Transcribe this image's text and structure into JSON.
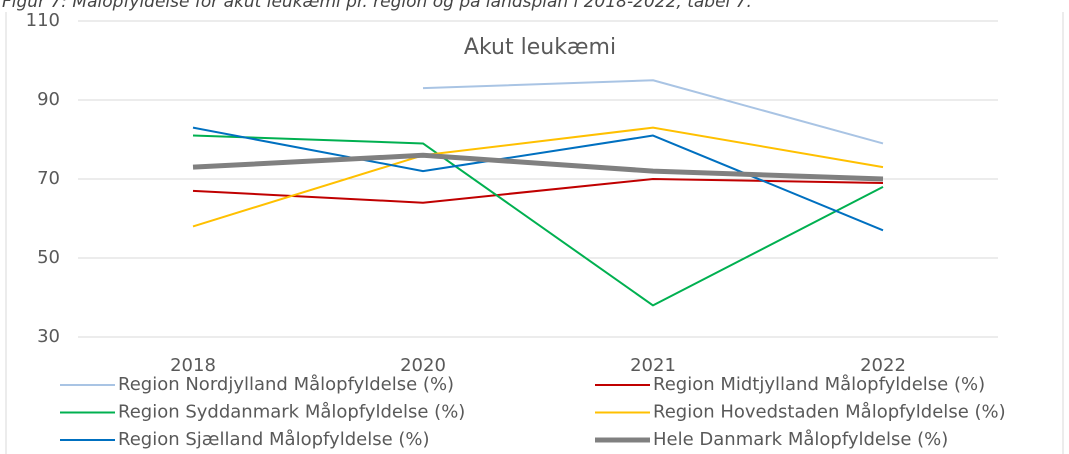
{
  "chart_data": {
    "type": "line",
    "caption": "Figur 7: Målopfyldelse for akut leukæmi pr. region og på landsplan i 2018-2022, tabel 7.",
    "title": "Akut leukæmi",
    "categories": [
      "2018",
      "2020",
      "2021",
      "2022"
    ],
    "ylim": [
      30,
      110
    ],
    "yticks": [
      30,
      50,
      70,
      90,
      110
    ],
    "grid": true,
    "series": [
      {
        "name": "Region Nordjylland Målopfyldelse (%)",
        "color": "#a9c4e4",
        "values": [
          null,
          93,
          95,
          79
        ]
      },
      {
        "name": "Region Midtjylland Målopfyldelse (%)",
        "color": "#c00000",
        "values": [
          67,
          64,
          70,
          69
        ]
      },
      {
        "name": "Region Syddanmark Målopfyldelse (%)",
        "color": "#00b050",
        "values": [
          81,
          79,
          38,
          68
        ]
      },
      {
        "name": "Region Hovedstaden Målopfyldelse (%)",
        "color": "#ffc000",
        "values": [
          58,
          76,
          83,
          73
        ]
      },
      {
        "name": "Region Sjælland  Målopfyldelse (%)",
        "color": "#0070c0",
        "values": [
          83,
          72,
          81,
          57
        ]
      },
      {
        "name": "Hele Danmark Målopfyldelse (%)",
        "color": "#808080",
        "values": [
          73,
          76,
          72,
          70
        ]
      }
    ]
  }
}
